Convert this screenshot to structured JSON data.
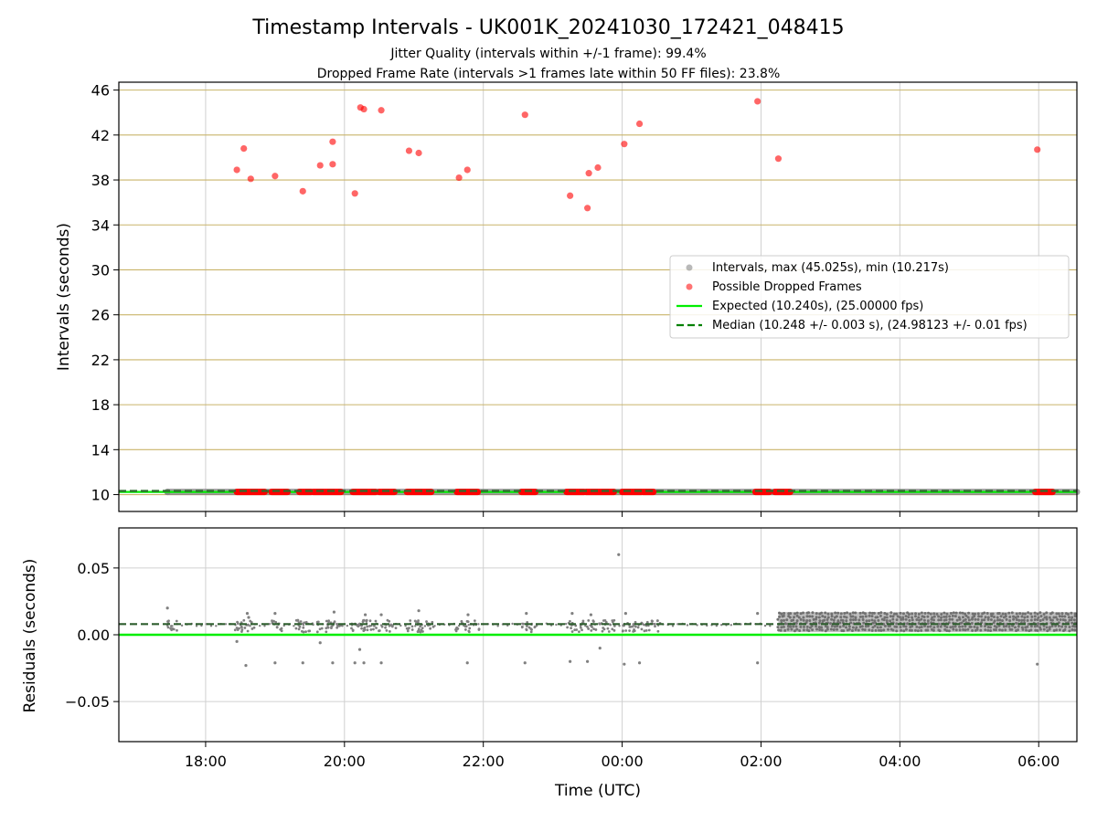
{
  "chart_data": [
    {
      "type": "scatter",
      "title": "Timestamp Intervals - UK001K_20241030_172421_048415",
      "subtitle_lines": [
        "Jitter Quality (intervals within +/-1 frame): 99.4%",
        "Dropped Frame Rate (intervals >1 frames late within 50 FF files): 23.8%"
      ],
      "xlabel": "",
      "ylabel": "Intervals (seconds)",
      "x_axis": {
        "unit": "time UTC (hours, 24 = 00:00 next day)",
        "range": [
          16.75,
          30.55
        ],
        "ticks": [
          18,
          20,
          22,
          24,
          26,
          28,
          30
        ],
        "tick_labels": [
          "18:00",
          "20:00",
          "22:00",
          "00:00",
          "02:00",
          "04:00",
          "06:00"
        ]
      },
      "ylim": [
        8.5,
        46.7
      ],
      "y_ticks": [
        10,
        14,
        18,
        22,
        26,
        30,
        34,
        38,
        42,
        46
      ],
      "grid": true,
      "legend_position": "center-right",
      "series": [
        {
          "name": "Intervals, max (45.025s), min (10.217s)",
          "color": "#808080",
          "marker": "dot",
          "x_range": [
            17.45,
            30.55
          ],
          "y": 10.24
        },
        {
          "name": "Possible Dropped Frames",
          "color": "#ff0000",
          "marker": "dot",
          "points": [
            [
              18.45,
              38.9
            ],
            [
              18.55,
              40.8
            ],
            [
              18.65,
              38.1
            ],
            [
              19.0,
              38.35
            ],
            [
              19.4,
              37.0
            ],
            [
              19.65,
              39.3
            ],
            [
              19.83,
              41.4
            ],
            [
              19.83,
              39.4
            ],
            [
              20.15,
              36.8
            ],
            [
              20.23,
              44.45
            ],
            [
              20.28,
              44.3
            ],
            [
              20.53,
              44.2
            ],
            [
              20.93,
              40.6
            ],
            [
              21.07,
              40.4
            ],
            [
              21.65,
              38.2
            ],
            [
              21.77,
              38.9
            ],
            [
              22.6,
              43.8
            ],
            [
              23.25,
              36.6
            ],
            [
              23.5,
              35.5
            ],
            [
              23.52,
              38.6
            ],
            [
              23.65,
              39.1
            ],
            [
              24.03,
              41.2
            ],
            [
              24.25,
              43.0
            ],
            [
              25.95,
              45.0
            ],
            [
              26.25,
              39.9
            ],
            [
              29.98,
              40.7
            ]
          ],
          "baseline_segments": [
            [
              18.45,
              18.85
            ],
            [
              18.95,
              19.18
            ],
            [
              19.35,
              19.52
            ],
            [
              19.55,
              19.95
            ],
            [
              20.12,
              20.45
            ],
            [
              20.5,
              20.72
            ],
            [
              20.9,
              21.25
            ],
            [
              21.62,
              21.92
            ],
            [
              22.55,
              22.75
            ],
            [
              23.2,
              23.45
            ],
            [
              23.48,
              23.88
            ],
            [
              24.0,
              24.28
            ],
            [
              24.3,
              24.45
            ],
            [
              25.92,
              26.12
            ],
            [
              26.2,
              26.42
            ],
            [
              29.95,
              30.2
            ]
          ]
        },
        {
          "name": "Expected (10.240s), (25.00000 fps)",
          "color": "#00ee00",
          "style": "solid",
          "y": 10.24
        },
        {
          "name": "Median (10.248 +/- 0.003 s), (24.98123 +/- 0.01 fps)",
          "color": "#008000",
          "style": "dashed",
          "y": 10.248
        }
      ]
    },
    {
      "type": "scatter",
      "title": "",
      "xlabel": "Time (UTC)",
      "ylabel": "Residuals (seconds)",
      "x_axis": {
        "unit": "time UTC (hours, 24 = 00:00 next day)",
        "range": [
          16.75,
          30.55
        ],
        "ticks": [
          18,
          20,
          22,
          24,
          26,
          28,
          30
        ],
        "tick_labels": [
          "18:00",
          "20:00",
          "22:00",
          "00:00",
          "02:00",
          "04:00",
          "06:00"
        ]
      },
      "ylim": [
        -0.08,
        0.08
      ],
      "y_ticks": [
        0.05,
        0.0,
        -0.05
      ],
      "y_tick_labels": [
        "0.05",
        "0.00",
        "−0.05"
      ],
      "grid": true,
      "series": [
        {
          "name": "Residuals",
          "color": "#808080",
          "marker": "dot",
          "outliers": [
            [
              17.45,
              0.02
            ],
            [
              18.45,
              -0.005
            ],
            [
              18.58,
              -0.023
            ],
            [
              18.6,
              0.016
            ],
            [
              18.62,
              0.013
            ],
            [
              19.0,
              0.016
            ],
            [
              19.0,
              -0.021
            ],
            [
              19.4,
              -0.021
            ],
            [
              19.65,
              -0.006
            ],
            [
              19.83,
              -0.021
            ],
            [
              19.85,
              0.017
            ],
            [
              20.15,
              -0.021
            ],
            [
              20.22,
              -0.011
            ],
            [
              20.28,
              -0.021
            ],
            [
              20.3,
              0.015
            ],
            [
              20.53,
              0.015
            ],
            [
              20.53,
              -0.021
            ],
            [
              21.07,
              0.018
            ],
            [
              21.77,
              -0.021
            ],
            [
              21.78,
              0.015
            ],
            [
              22.6,
              -0.021
            ],
            [
              22.62,
              0.016
            ],
            [
              23.25,
              -0.02
            ],
            [
              23.28,
              0.016
            ],
            [
              23.5,
              -0.02
            ],
            [
              23.55,
              0.015
            ],
            [
              23.68,
              -0.01
            ],
            [
              23.95,
              0.06
            ],
            [
              24.03,
              -0.022
            ],
            [
              24.05,
              0.016
            ],
            [
              24.25,
              -0.021
            ],
            [
              25.95,
              -0.021
            ],
            [
              25.95,
              0.016
            ],
            [
              29.98,
              -0.022
            ]
          ],
          "clusters": [
            [
              17.45,
              17.6
            ],
            [
              18.4,
              18.7
            ],
            [
              18.95,
              19.1
            ],
            [
              19.3,
              19.55
            ],
            [
              19.6,
              19.95
            ],
            [
              20.1,
              20.75
            ],
            [
              20.9,
              21.3
            ],
            [
              21.6,
              21.95
            ],
            [
              22.55,
              22.75
            ],
            [
              23.2,
              23.45
            ],
            [
              23.48,
              23.9
            ],
            [
              24.0,
              24.55
            ]
          ],
          "dense_band_x_range": [
            26.25,
            30.55
          ],
          "dense_band_y_range": [
            0.002,
            0.017
          ]
        },
        {
          "name": "Expected",
          "color": "#00ee00",
          "style": "solid",
          "y": 0.0
        },
        {
          "name": "Median",
          "color": "#008000",
          "style": "dashed",
          "y": 0.008
        }
      ]
    }
  ]
}
